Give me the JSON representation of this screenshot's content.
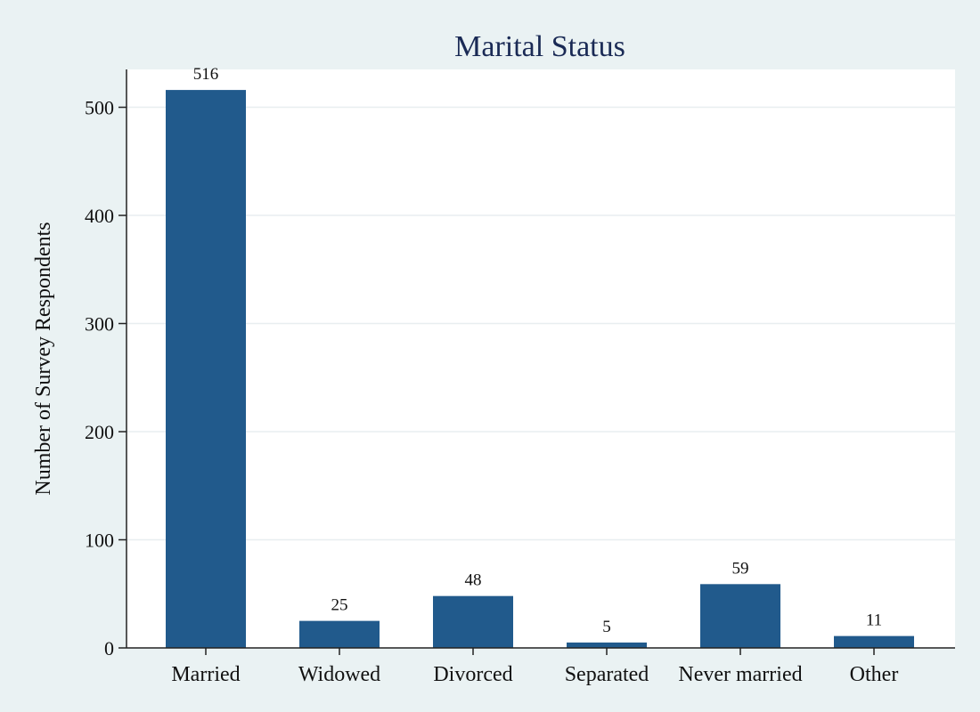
{
  "chart_data": {
    "type": "bar",
    "title": "Marital Status",
    "xlabel": "",
    "ylabel": "Number of Survey Respondents",
    "categories": [
      "Married",
      "Widowed",
      "Divorced",
      "Separated",
      "Never married",
      "Other"
    ],
    "values": [
      516,
      25,
      48,
      5,
      59,
      11
    ],
    "data_labels": [
      "516",
      "25",
      "48",
      "5",
      "59",
      "11"
    ],
    "ylim": [
      0,
      535
    ],
    "yticks": [
      0,
      100,
      200,
      300,
      400,
      500
    ],
    "ytick_labels": [
      "0",
      "100",
      "200",
      "300",
      "400",
      "500"
    ],
    "grid": true,
    "legend": "none",
    "colors": {
      "bar": "#215a8c",
      "background": "#eaf2f3",
      "plot_area": "#ffffff",
      "gridline": "#e8eef0",
      "title": "#1a2a55"
    }
  }
}
